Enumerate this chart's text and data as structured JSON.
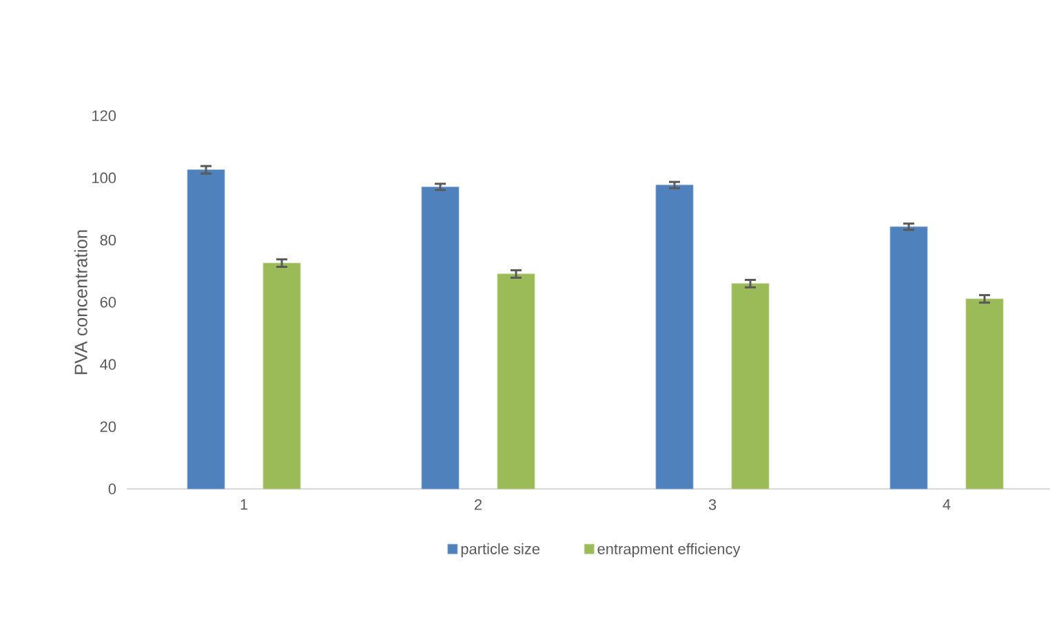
{
  "chart_data": {
    "type": "bar",
    "ylabel": "PVA concentration",
    "categories": [
      "1",
      "2",
      "3",
      "4"
    ],
    "series": [
      {
        "name": "particle size",
        "color": "#4f81bd",
        "values": [
          102.6,
          97.1,
          97.7,
          84.3
        ],
        "errors": [
          1.2,
          1.0,
          1.0,
          1.0
        ]
      },
      {
        "name": "entrapment efficiency",
        "color": "#9bbb59",
        "values": [
          72.6,
          69.1,
          66.0,
          61.1
        ],
        "errors": [
          1.2,
          1.2,
          1.2,
          1.2
        ]
      }
    ],
    "ylim": [
      0,
      120
    ],
    "yticks": [
      0,
      20,
      40,
      60,
      80,
      100,
      120
    ],
    "grid": false,
    "legend": "bottom"
  }
}
